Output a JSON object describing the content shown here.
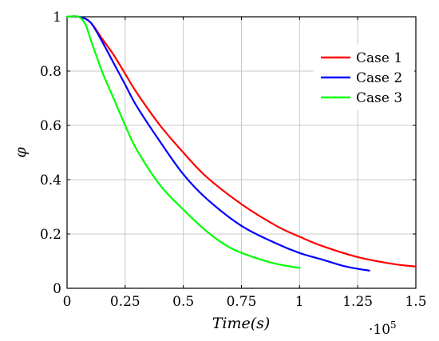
{
  "chart_data": {
    "type": "line",
    "xlabel": "Time(s)",
    "ylabel": "φ",
    "x_multiplier_label": "·10",
    "x_multiplier_exponent": "5",
    "xlim": [
      0,
      1.5
    ],
    "ylim": [
      0,
      1
    ],
    "x_ticks": [
      0,
      0.25,
      0.5,
      0.75,
      1,
      1.25,
      1.5
    ],
    "x_tick_labels": [
      "0",
      "0.25",
      "0.5",
      "0.75",
      "1",
      "1.25",
      "1.5"
    ],
    "y_ticks": [
      0,
      0.2,
      0.4,
      0.6,
      0.8,
      1
    ],
    "y_tick_labels": [
      "0",
      "0.2",
      "0.4",
      "0.6",
      "0.8",
      "1"
    ],
    "grid": true,
    "legend_position": "top-right",
    "series": [
      {
        "name": "Case 1",
        "color": "#ff0000",
        "x": [
          0,
          0.05,
          0.1,
          0.15,
          0.2,
          0.25,
          0.3,
          0.4,
          0.5,
          0.6,
          0.75,
          0.9,
          1.0,
          1.1,
          1.25,
          1.4,
          1.5
        ],
        "y": [
          1.0,
          1.0,
          0.98,
          0.92,
          0.86,
          0.79,
          0.72,
          0.6,
          0.5,
          0.41,
          0.31,
          0.23,
          0.19,
          0.155,
          0.115,
          0.09,
          0.08
        ]
      },
      {
        "name": "Case 2",
        "color": "#0000ff",
        "x": [
          0,
          0.05,
          0.1,
          0.15,
          0.2,
          0.25,
          0.3,
          0.4,
          0.5,
          0.6,
          0.75,
          0.9,
          1.0,
          1.1,
          1.2,
          1.3
        ],
        "y": [
          1.0,
          1.0,
          0.98,
          0.91,
          0.83,
          0.75,
          0.67,
          0.54,
          0.42,
          0.33,
          0.23,
          0.165,
          0.13,
          0.105,
          0.08,
          0.065
        ]
      },
      {
        "name": "Case 3",
        "color": "#00ff00",
        "x": [
          0,
          0.05,
          0.08,
          0.1,
          0.15,
          0.2,
          0.25,
          0.3,
          0.4,
          0.5,
          0.6,
          0.7,
          0.8,
          0.9,
          1.0
        ],
        "y": [
          1.0,
          1.0,
          0.97,
          0.92,
          0.8,
          0.7,
          0.6,
          0.51,
          0.38,
          0.29,
          0.21,
          0.15,
          0.115,
          0.09,
          0.075
        ]
      }
    ]
  }
}
